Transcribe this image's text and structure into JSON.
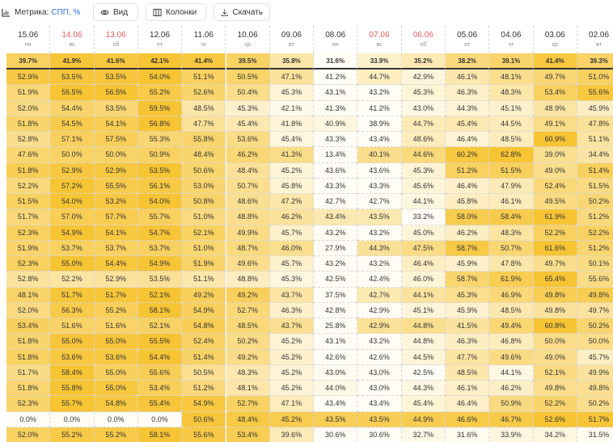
{
  "toolbar": {
    "metric_label": "Метрика:",
    "metric_value": "СПП, %",
    "view": "Вид",
    "columns": "Колонки",
    "download": "Скачать"
  },
  "columns": [
    {
      "date": "15.06",
      "weekday": "пн",
      "color": "#333333"
    },
    {
      "date": "14.06",
      "weekday": "вс",
      "color": "#e05d5d"
    },
    {
      "date": "13.06",
      "weekday": "сб",
      "color": "#e05d5d"
    },
    {
      "date": "12.06",
      "weekday": "пт",
      "color": "#333333"
    },
    {
      "date": "11.06",
      "weekday": "чт",
      "color": "#333333"
    },
    {
      "date": "10.06",
      "weekday": "ср",
      "color": "#333333"
    },
    {
      "date": "09.06",
      "weekday": "вт",
      "color": "#333333"
    },
    {
      "date": "08.06",
      "weekday": "пн",
      "color": "#333333"
    },
    {
      "date": "07.06",
      "weekday": "вс",
      "color": "#e05d5d"
    },
    {
      "date": "06.06",
      "weekday": "сб",
      "color": "#e05d5d"
    },
    {
      "date": "05.06",
      "weekday": "пт",
      "color": "#333333"
    },
    {
      "date": "04.06",
      "weekday": "чт",
      "color": "#333333"
    },
    {
      "date": "03.06",
      "weekday": "ср",
      "color": "#333333"
    },
    {
      "date": "02.06",
      "weekday": "вт",
      "color": "#333333"
    }
  ],
  "summary": [
    "39.7%",
    "41.9%",
    "41.6%",
    "42.1%",
    "41.4%",
    "39.5%",
    "35.8%",
    "31.6%",
    "33.9%",
    "35.2%",
    "38.2%",
    "39.1%",
    "41.4%",
    "39.3%"
  ],
  "rows": [
    [
      "52.9%",
      "53.5%",
      "53.5%",
      "54.0%",
      "51.1%",
      "50.5%",
      "47.1%",
      "41.2%",
      "44.7%",
      "42.9%",
      "46.1%",
      "48.1%",
      "49.7%",
      "51.0%"
    ],
    [
      "51.9%",
      "56.5%",
      "56.5%",
      "55.2%",
      "52.6%",
      "50.4%",
      "45.3%",
      "43.1%",
      "43.2%",
      "45.3%",
      "46.3%",
      "48.3%",
      "53.4%",
      "55.6%"
    ],
    [
      "52.0%",
      "54.4%",
      "53.5%",
      "59.5%",
      "48.5%",
      "45.3%",
      "42.1%",
      "41.3%",
      "41.2%",
      "43.0%",
      "44.3%",
      "45.1%",
      "48.9%",
      "45.9%"
    ],
    [
      "51.8%",
      "54.5%",
      "54.1%",
      "56.8%",
      "47.7%",
      "45.4%",
      "41.8%",
      "40.9%",
      "38.9%",
      "44.7%",
      "45.4%",
      "44.5%",
      "49.1%",
      "47.8%"
    ],
    [
      "52.8%",
      "57.1%",
      "57.5%",
      "55.3%",
      "55.8%",
      "53.6%",
      "45.4%",
      "43.3%",
      "43.4%",
      "48.6%",
      "46.4%",
      "48.5%",
      "60.9%",
      "51.1%"
    ],
    [
      "47.6%",
      "50.0%",
      "50.0%",
      "50.9%",
      "48.4%",
      "46.2%",
      "41.3%",
      "13.4%",
      "40.1%",
      "44.6%",
      "60.2%",
      "62.8%",
      "39.0%",
      "34.4%"
    ],
    [
      "51.8%",
      "52.9%",
      "52.9%",
      "53.5%",
      "50.6%",
      "48.4%",
      "45.2%",
      "43.6%",
      "43.6%",
      "45.3%",
      "51.2%",
      "51.5%",
      "49.0%",
      "51.4%"
    ],
    [
      "52.2%",
      "57.2%",
      "55.5%",
      "56.1%",
      "53.0%",
      "50.7%",
      "45.8%",
      "43.3%",
      "43.3%",
      "45.6%",
      "46.4%",
      "47.9%",
      "52.4%",
      "51.5%"
    ],
    [
      "51.5%",
      "54.0%",
      "53.2%",
      "54.0%",
      "50.8%",
      "48.6%",
      "47.2%",
      "42.7%",
      "42.7%",
      "44.1%",
      "45.8%",
      "46.1%",
      "49.5%",
      "50.2%"
    ],
    [
      "51.7%",
      "57.0%",
      "57.7%",
      "55.7%",
      "51.0%",
      "48.8%",
      "46.2%",
      "43.4%",
      "43.5%",
      "33.2%",
      "58.0%",
      "58.4%",
      "61.9%",
      "51.2%"
    ],
    [
      "52.3%",
      "54.9%",
      "54.1%",
      "54.7%",
      "52.1%",
      "49.9%",
      "45.7%",
      "43.2%",
      "43.2%",
      "45.0%",
      "46.2%",
      "48.3%",
      "52.2%",
      "52.2%"
    ],
    [
      "51.9%",
      "53.7%",
      "53.7%",
      "53.7%",
      "51.0%",
      "48.7%",
      "46.0%",
      "27.9%",
      "44.3%",
      "47.5%",
      "58.7%",
      "50.7%",
      "61.6%",
      "51.2%"
    ],
    [
      "52.3%",
      "55.0%",
      "54.4%",
      "54.9%",
      "51.9%",
      "49.6%",
      "45.7%",
      "43.2%",
      "43.2%",
      "46.4%",
      "45.9%",
      "47.8%",
      "49.7%",
      "50.1%"
    ],
    [
      "52.8%",
      "52.2%",
      "52.9%",
      "53.5%",
      "51.1%",
      "48.8%",
      "45.3%",
      "42.5%",
      "42.4%",
      "46.0%",
      "58.7%",
      "61.9%",
      "65.4%",
      "55.6%"
    ],
    [
      "48.1%",
      "51.7%",
      "51.7%",
      "52.1%",
      "49.2%",
      "49.2%",
      "43.7%",
      "37.5%",
      "42.7%",
      "44.1%",
      "45.3%",
      "46.9%",
      "49.8%",
      "49.8%"
    ],
    [
      "52.0%",
      "56.3%",
      "55.2%",
      "58.1%",
      "54.9%",
      "52.7%",
      "46.3%",
      "42.8%",
      "42.9%",
      "45.1%",
      "45.9%",
      "48.5%",
      "49.8%",
      "49.7%"
    ],
    [
      "53.4%",
      "51.6%",
      "51.6%",
      "52.1%",
      "54.8%",
      "48.5%",
      "43.7%",
      "25.8%",
      "42.9%",
      "44.8%",
      "41.5%",
      "49.4%",
      "60.8%",
      "50.2%"
    ],
    [
      "51.8%",
      "55.0%",
      "55.0%",
      "55.5%",
      "52.4%",
      "50.2%",
      "45.2%",
      "43.1%",
      "43.2%",
      "44.8%",
      "46.3%",
      "46.8%",
      "50.0%",
      "50.0%"
    ],
    [
      "51.8%",
      "53.6%",
      "53.6%",
      "54.4%",
      "51.4%",
      "49.2%",
      "45.2%",
      "42.6%",
      "42.6%",
      "44.5%",
      "47.7%",
      "49.6%",
      "49.0%",
      "45.7%"
    ],
    [
      "51.7%",
      "58.4%",
      "55.0%",
      "55.6%",
      "50.5%",
      "48.3%",
      "45.2%",
      "43.0%",
      "43.0%",
      "42.5%",
      "48.5%",
      "44.1%",
      "52.1%",
      "49.9%"
    ],
    [
      "51.8%",
      "55.8%",
      "55.0%",
      "53.4%",
      "51.2%",
      "48.1%",
      "45.2%",
      "44.0%",
      "43.0%",
      "44.3%",
      "46.1%",
      "46.2%",
      "49.8%",
      "49.8%"
    ],
    [
      "52.3%",
      "55.7%",
      "54.8%",
      "55.4%",
      "54.9%",
      "52.7%",
      "47.1%",
      "43.4%",
      "43.4%",
      "45.4%",
      "46.4%",
      "50.9%",
      "52.2%",
      "50.2%"
    ],
    [
      "0.0%",
      "0.0%",
      "0.0%",
      "0.0%",
      "50.6%",
      "48.4%",
      "45.2%",
      "43.5%",
      "43.5%",
      "44.9%",
      "46.6%",
      "46.7%",
      "52.6%",
      "51.7%"
    ],
    [
      "52.0%",
      "55.2%",
      "55.2%",
      "58.1%",
      "55.6%",
      "53.4%",
      "39.6%",
      "30.6%",
      "30.6%",
      "32.7%",
      "31.6%",
      "33.9%",
      "34.2%",
      "31.5%"
    ]
  ]
}
